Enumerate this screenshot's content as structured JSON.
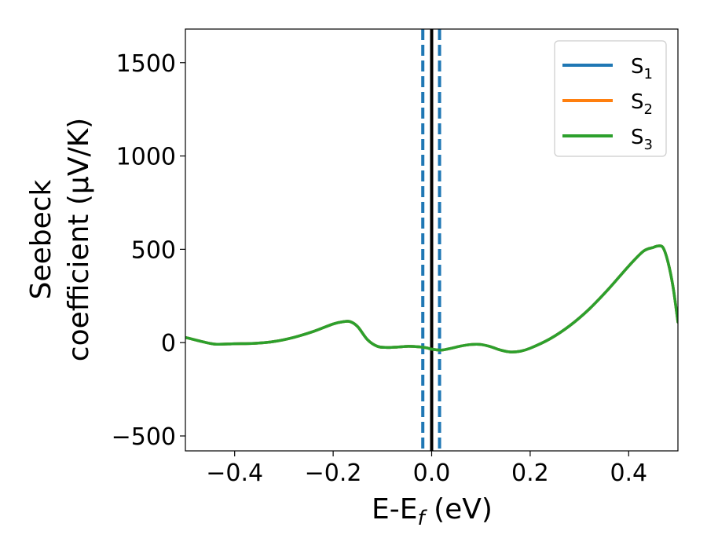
{
  "chart_data": {
    "type": "line",
    "title": "",
    "xlabel": "E-E",
    "xlabel_sub": "f",
    "xlabel_unit": " (eV)",
    "ylabel_line1": "Seebeck",
    "ylabel_line2": "coefficient  (μV/K)",
    "xlim": [
      -0.5,
      0.5
    ],
    "ylim": [
      -580,
      1680
    ],
    "xticks": [
      -0.4,
      -0.2,
      0.0,
      0.2,
      0.4
    ],
    "xtick_labels": [
      "−0.4",
      "−0.2",
      "0.0",
      "0.2",
      "0.4"
    ],
    "yticks": [
      -500,
      0,
      500,
      1000,
      1500
    ],
    "ytick_labels": [
      "−500",
      "0",
      "500",
      "1000",
      "1500"
    ],
    "grid": false,
    "legend_position": "top-right",
    "vlines": [
      {
        "x": 0.0,
        "style": "solid",
        "color": "#000000"
      },
      {
        "x": -0.018,
        "style": "dashed",
        "color": "#1f77b4"
      },
      {
        "x": 0.016,
        "style": "dashed",
        "color": "#1f77b4"
      }
    ],
    "x": [
      -0.5,
      -0.47,
      -0.44,
      -0.4,
      -0.36,
      -0.32,
      -0.28,
      -0.24,
      -0.2,
      -0.18,
      -0.165,
      -0.15,
      -0.13,
      -0.11,
      -0.09,
      -0.07,
      -0.05,
      -0.03,
      -0.01,
      0.0,
      0.02,
      0.04,
      0.06,
      0.08,
      0.1,
      0.12,
      0.14,
      0.16,
      0.18,
      0.2,
      0.24,
      0.28,
      0.32,
      0.36,
      0.4,
      0.43,
      0.45,
      0.46,
      0.47,
      0.48,
      0.49,
      0.5
    ],
    "series": [
      {
        "name": "S",
        "sub": "1",
        "color": "#1f77b4",
        "values": [
          28,
          8,
          -8,
          -6,
          -4,
          6,
          28,
          60,
          100,
          112,
          112,
          85,
          15,
          -20,
          -26,
          -24,
          -20,
          -22,
          -28,
          -35,
          -40,
          -30,
          -18,
          -10,
          -10,
          -22,
          -40,
          -50,
          -46,
          -30,
          20,
          90,
          180,
          290,
          410,
          490,
          510,
          518,
          508,
          430,
          300,
          110
        ]
      },
      {
        "name": "S",
        "sub": "2",
        "color": "#ff7f0e",
        "values": [
          28,
          8,
          -8,
          -6,
          -4,
          6,
          28,
          60,
          100,
          112,
          112,
          85,
          15,
          -20,
          -26,
          -24,
          -20,
          -22,
          -28,
          -35,
          -40,
          -30,
          -18,
          -10,
          -10,
          -22,
          -40,
          -50,
          -46,
          -30,
          20,
          90,
          180,
          290,
          410,
          490,
          510,
          518,
          508,
          430,
          300,
          110
        ]
      },
      {
        "name": "S",
        "sub": "3",
        "color": "#2ca02c",
        "values": [
          28,
          8,
          -8,
          -6,
          -4,
          6,
          28,
          60,
          100,
          112,
          112,
          85,
          15,
          -20,
          -26,
          -24,
          -20,
          -22,
          -28,
          -35,
          -40,
          -30,
          -18,
          -10,
          -10,
          -22,
          -40,
          -50,
          -46,
          -30,
          20,
          90,
          180,
          290,
          410,
          490,
          510,
          518,
          508,
          430,
          300,
          110
        ]
      }
    ]
  }
}
